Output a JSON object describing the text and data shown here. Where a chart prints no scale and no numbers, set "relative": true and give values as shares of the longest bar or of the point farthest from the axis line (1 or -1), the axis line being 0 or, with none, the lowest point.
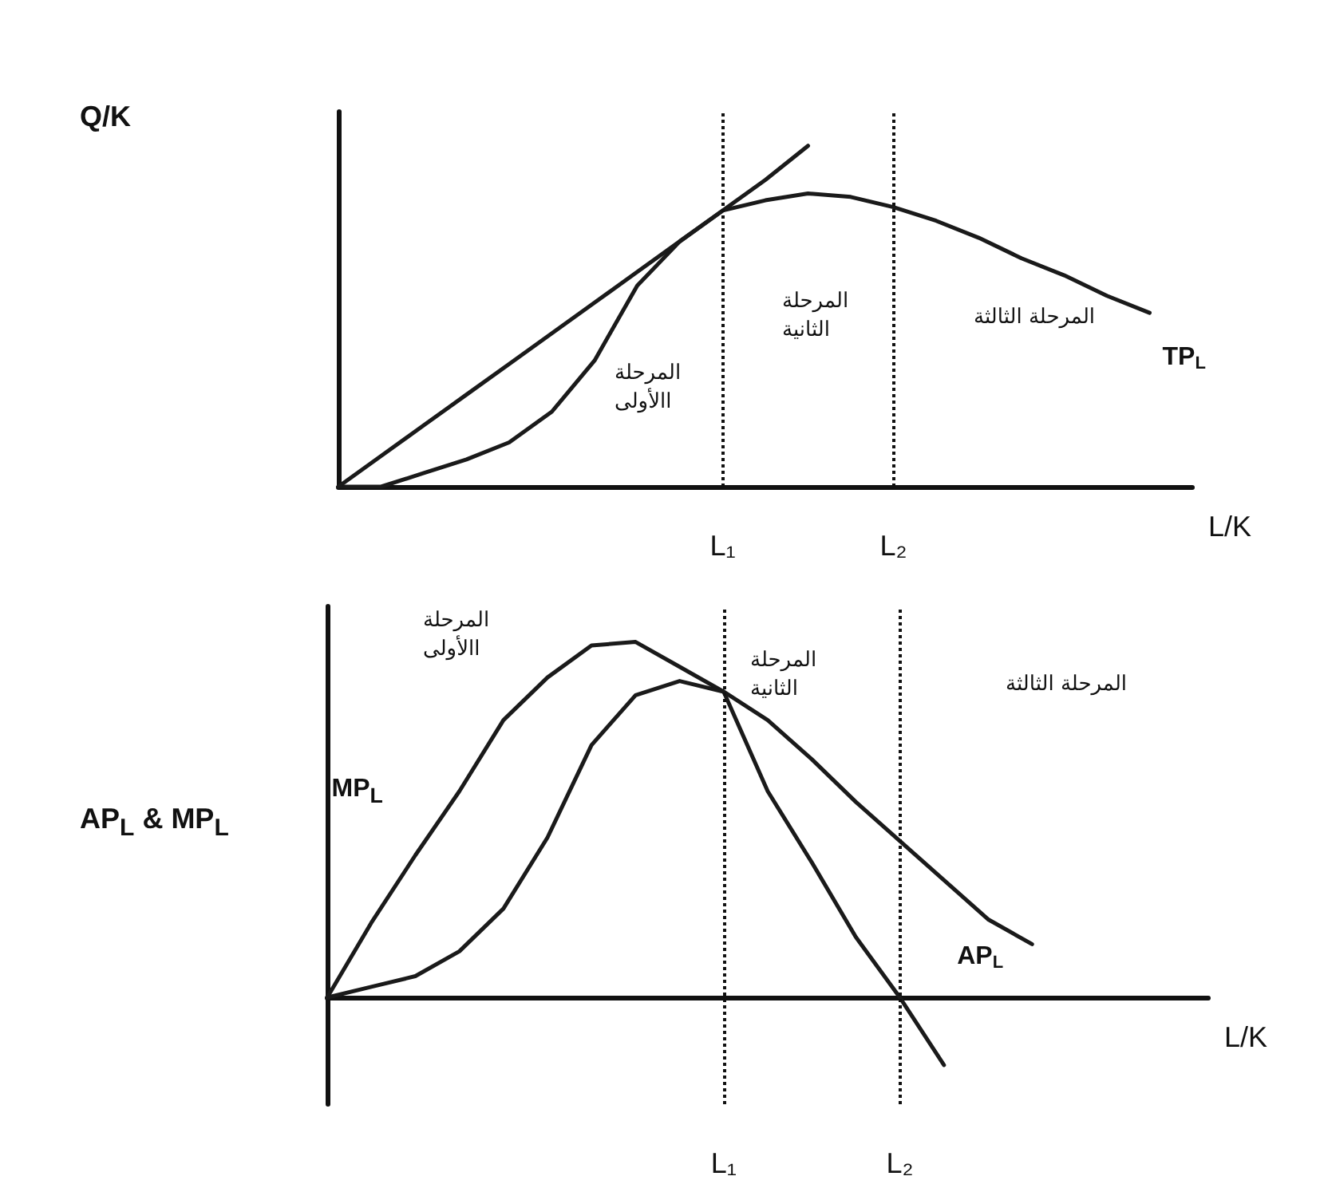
{
  "chart_data": [
    {
      "type": "line",
      "relative": true,
      "marker": "none",
      "tick_labels": "x",
      "ylabel": "Q/K",
      "xlabel": "L/K",
      "categories": [
        null,
        null,
        null,
        null,
        null,
        null,
        null,
        null,
        null,
        "L₁",
        null,
        null,
        null,
        "L₂",
        null,
        null,
        null,
        null,
        null,
        null,
        null
      ],
      "series": [
        {
          "name": "TP$_{L}$",
          "color": "#1a1a1a",
          "values": [
            0,
            0,
            0.04,
            0.08,
            0.13,
            0.22,
            0.37,
            0.59,
            0.72,
            0.81,
            0.84,
            0.86,
            0.85,
            0.82,
            0.78,
            0.73,
            0.67,
            0.62,
            0.56,
            0.51,
            null
          ]
        },
        {
          "color": "#1a1a1a",
          "values": [
            0,
            0.09,
            0.18,
            0.27,
            0.36,
            0.45,
            0.54,
            0.63,
            0.72,
            0.81,
            0.9,
            1,
            null,
            null,
            null,
            null,
            null,
            null,
            null,
            null,
            null
          ]
        }
      ],
      "ref_lines": [
        {
          "axis": "x",
          "value": "L₁",
          "line_style": "dotted"
        },
        {
          "axis": "x",
          "value": "L₂",
          "line_style": "dotted"
        }
      ],
      "annotations": [
        "المرحلة\nاالأولى",
        "المرحلة\nالثانية",
        "المرحلة الثالثة"
      ]
    },
    {
      "type": "line",
      "relative": true,
      "marker": "none",
      "tick_labels": "x",
      "ylabel": "AP$_{L}$ & MP$_{L}$",
      "xlabel": "L/K",
      "categories": [
        null,
        null,
        null,
        null,
        null,
        null,
        null,
        null,
        null,
        "L₁",
        null,
        null,
        null,
        "L₂",
        null,
        null,
        null,
        null,
        null,
        null,
        null
      ],
      "series": [
        {
          "name": "MP$_{L}$",
          "color": "#1a1a1a",
          "values": [
            0,
            0.21,
            0.4,
            0.58,
            0.78,
            0.9,
            0.99,
            1,
            0.93,
            0.86,
            0.58,
            0.38,
            0.17,
            0,
            -0.19,
            null,
            null,
            null,
            null,
            null,
            null
          ]
        },
        {
          "name": "AP$_{L}$",
          "color": "#1a1a1a",
          "values": [
            0,
            0.03,
            0.06,
            0.13,
            0.25,
            0.45,
            0.71,
            0.85,
            0.89,
            0.86,
            0.78,
            0.67,
            0.55,
            0.44,
            0.33,
            0.22,
            0.15,
            null,
            null,
            null,
            null
          ]
        }
      ],
      "ref_lines": [
        {
          "axis": "x",
          "value": "L₁",
          "line_style": "dotted"
        },
        {
          "axis": "x",
          "value": "L₂",
          "line_style": "dotted"
        }
      ],
      "annotations": [
        "المرحلة\nاالأولى",
        "المرحلة\nالثانية",
        "المرحلة الثالثة"
      ]
    }
  ]
}
